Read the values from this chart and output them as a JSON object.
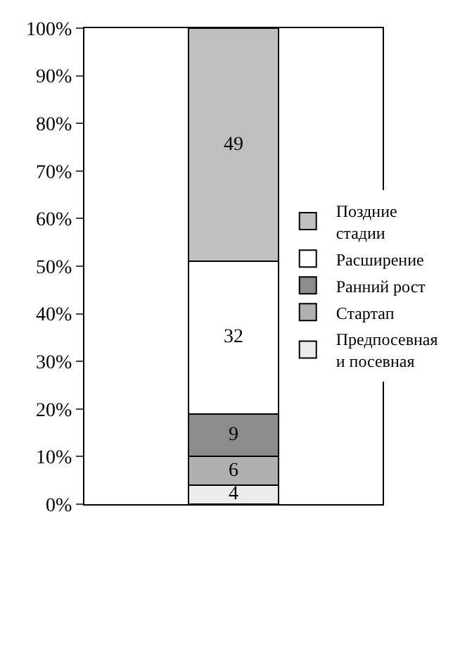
{
  "chart_data": {
    "type": "bar",
    "stacked": true,
    "categories": [
      null
    ],
    "series": [
      {
        "name": "Предпосевная и посевная",
        "color": "#ececec",
        "values": [
          4
        ]
      },
      {
        "name": "Стартап",
        "color": "#b0b0b0",
        "values": [
          6
        ]
      },
      {
        "name": "Ранний рост",
        "color": "#8c8c8c",
        "values": [
          9
        ]
      },
      {
        "name": "Расширение",
        "color": "#ffffff",
        "values": [
          32
        ]
      },
      {
        "name": "Поздние стадии",
        "color": "#c0c0c0",
        "values": [
          49
        ]
      }
    ],
    "ylim": [
      0,
      100
    ],
    "yticks": [
      {
        "value": 0,
        "label": "0%"
      },
      {
        "value": 10,
        "label": "10%"
      },
      {
        "value": 20,
        "label": "20%"
      },
      {
        "value": 30,
        "label": "30%"
      },
      {
        "value": 40,
        "label": "40%"
      },
      {
        "value": 50,
        "label": "50%"
      },
      {
        "value": 60,
        "label": "60%"
      },
      {
        "value": 70,
        "label": "70%"
      },
      {
        "value": 80,
        "label": "80%"
      },
      {
        "value": 90,
        "label": "90%"
      },
      {
        "value": 100,
        "label": "100%"
      }
    ],
    "data_labels": true,
    "grid": false,
    "legend": "right"
  }
}
